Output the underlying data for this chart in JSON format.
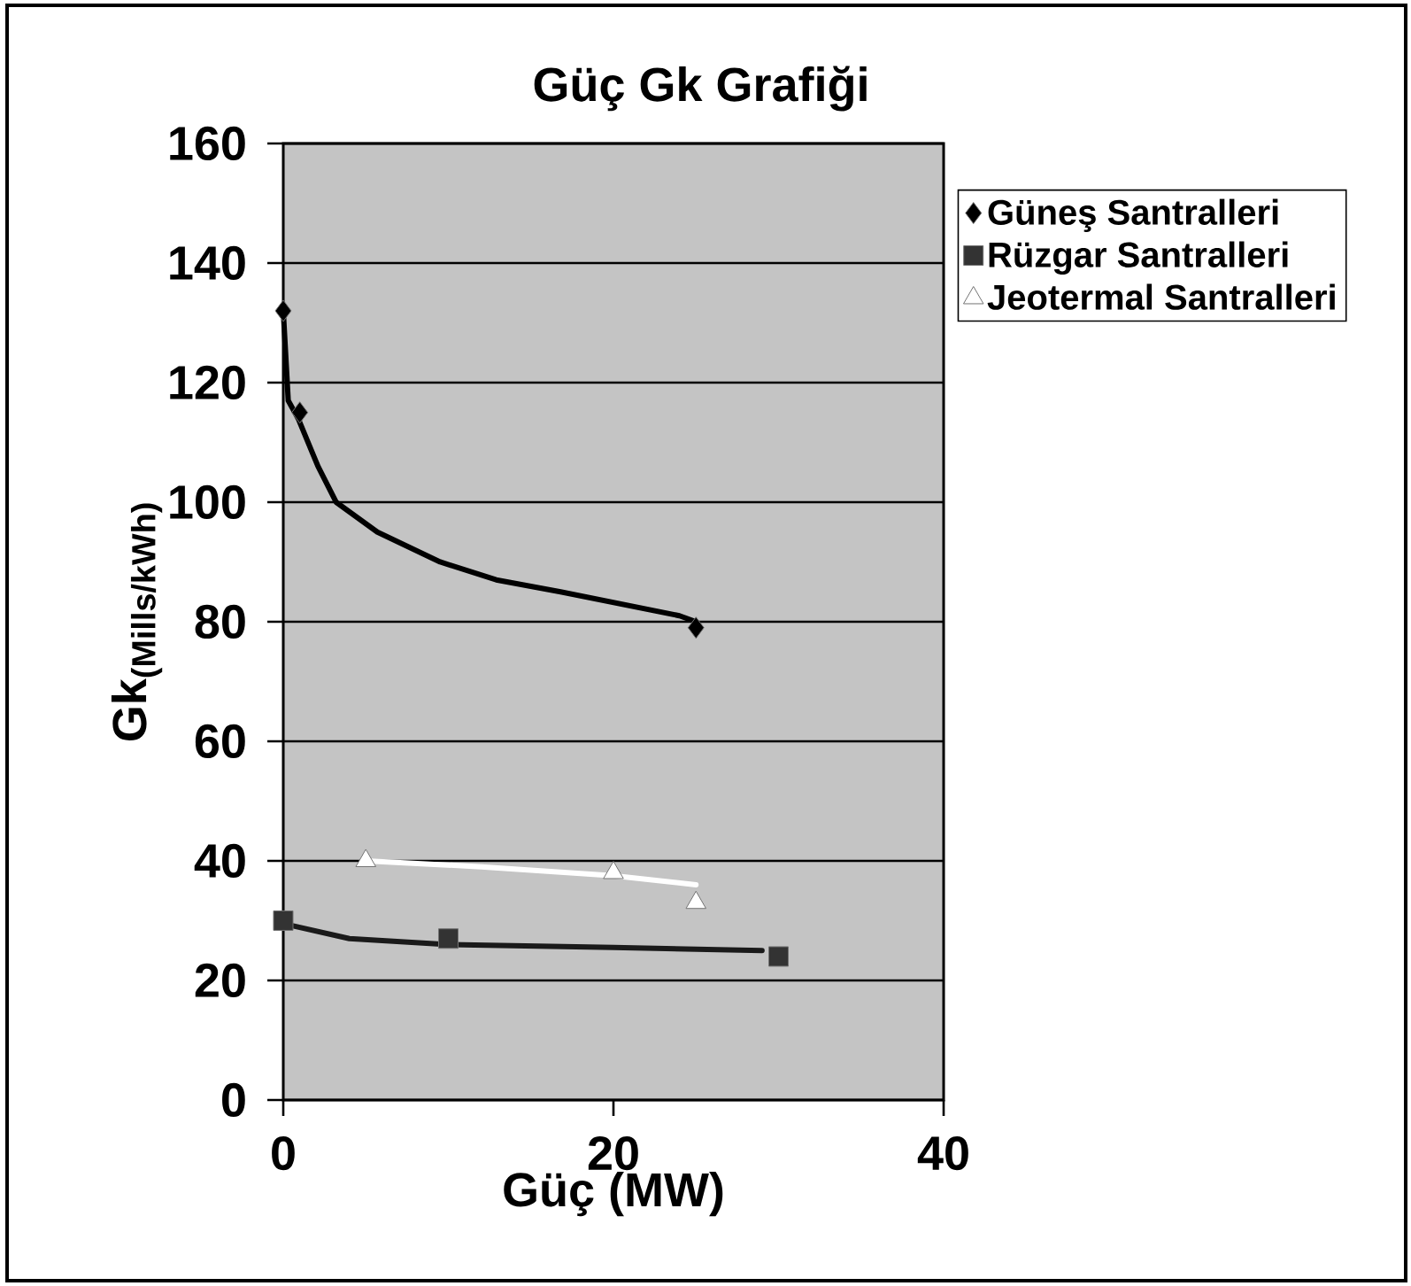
{
  "chart_data": {
    "type": "scatter",
    "title": "Güç Gk Grafiği",
    "xlabel": "Güç (MW)",
    "ylabel": "Gk$_{(Mills/kWh)}$",
    "xlim": [
      0,
      40
    ],
    "ylim": [
      0,
      160
    ],
    "xticks": [
      0,
      20,
      40
    ],
    "yticks": [
      0,
      20,
      40,
      60,
      80,
      100,
      120,
      140,
      160
    ],
    "grid": "y",
    "legend": "right",
    "series": [
      {
        "name": "Güneş Santralleri",
        "color": "#000000",
        "marker": "diamond",
        "x": [
          0,
          1,
          25
        ],
        "values": [
          132,
          115,
          79
        ]
      },
      {
        "name": "Rüzgar Santralleri",
        "color": "#333333",
        "marker": "square",
        "x": [
          0,
          10,
          30
        ],
        "values": [
          30,
          27,
          24
        ]
      },
      {
        "name": "Jeotermal Santralleri",
        "color": "#ffffff",
        "marker": "triangle",
        "x": [
          5,
          20,
          25
        ],
        "values": [
          40,
          38,
          33
        ]
      },
      {
        "type": "line",
        "color": "#000000",
        "line_style": "solid",
        "x": [
          0,
          0.3,
          0.9,
          2.1,
          3.2,
          5.7,
          9.5,
          12.9,
          16.8,
          24,
          25
        ],
        "values": [
          132,
          117,
          114,
          106,
          100,
          95,
          90,
          87,
          85,
          81,
          80
        ]
      },
      {
        "type": "line",
        "color": "#1a1a1a",
        "line_style": "solid",
        "x": [
          0,
          4,
          10,
          20,
          29
        ],
        "values": [
          29.5,
          27,
          26,
          25.5,
          25
        ]
      },
      {
        "type": "line",
        "color": "#ffffff",
        "line_style": "solid",
        "x": [
          5,
          12,
          20,
          25
        ],
        "values": [
          40,
          39,
          37.5,
          36
        ]
      }
    ]
  }
}
